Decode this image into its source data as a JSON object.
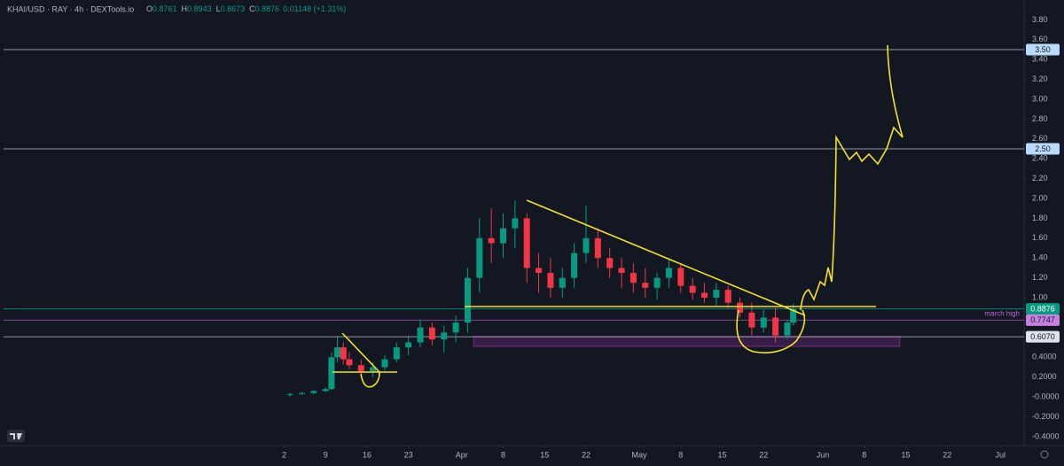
{
  "header": {
    "symbol": "KHAI/USD · RAY · 4h · DEXTools.io",
    "ohlc": [
      {
        "label": "O",
        "value": 0.8761
      },
      {
        "label": "H",
        "value": 0.8943
      },
      {
        "label": "L",
        "value": 0.8673
      },
      {
        "label": "C",
        "value": 0.8876
      }
    ],
    "change": "0.01148 (+1.31%)"
  },
  "chart_data": {
    "type": "candlestick",
    "up_color": "#089981",
    "down_color": "#f23645",
    "x": [
      "Mar 3",
      "Mar 5",
      "Mar 7",
      "Mar 9",
      "Mar 10",
      "Mar 11",
      "Mar 12",
      "Mar 13",
      "Mar 15",
      "Mar 17",
      "Mar 19",
      "Mar 21",
      "Mar 23",
      "Mar 25",
      "Mar 27",
      "Mar 29",
      "Mar 31",
      "Apr 2",
      "Apr 4",
      "Apr 6",
      "Apr 8",
      "Apr 10",
      "Apr 12",
      "Apr 14",
      "Apr 16",
      "Apr 18",
      "Apr 20",
      "Apr 22",
      "Apr 24",
      "Apr 26",
      "Apr 28",
      "Apr 30",
      "May 2",
      "May 4",
      "May 6",
      "May 8",
      "May 10",
      "May 12",
      "May 14",
      "May 16",
      "May 18",
      "May 20",
      "May 22",
      "May 24",
      "May 26",
      "May 27"
    ],
    "open": [
      0.02,
      0.03,
      0.04,
      0.06,
      0.08,
      0.4,
      0.5,
      0.38,
      0.32,
      0.26,
      0.3,
      0.38,
      0.5,
      0.55,
      0.7,
      0.58,
      0.65,
      0.75,
      1.2,
      1.6,
      1.55,
      1.7,
      1.8,
      1.3,
      1.25,
      1.1,
      1.2,
      1.45,
      1.6,
      1.4,
      1.3,
      1.25,
      1.15,
      1.1,
      1.2,
      1.3,
      1.12,
      1.05,
      1.0,
      1.08,
      0.95,
      0.85,
      0.7,
      0.8,
      0.62,
      0.75
    ],
    "high": [
      0.04,
      0.05,
      0.07,
      0.1,
      0.45,
      0.62,
      0.55,
      0.45,
      0.38,
      0.35,
      0.42,
      0.55,
      0.62,
      0.78,
      0.75,
      0.72,
      0.82,
      1.3,
      1.8,
      1.9,
      1.85,
      1.98,
      1.85,
      1.45,
      1.4,
      1.3,
      1.55,
      1.93,
      1.7,
      1.5,
      1.4,
      1.35,
      1.3,
      1.25,
      1.4,
      1.35,
      1.2,
      1.15,
      1.15,
      1.12,
      1.0,
      0.95,
      0.88,
      0.9,
      0.78,
      0.94
    ],
    "low": [
      0.0,
      0.02,
      0.03,
      0.05,
      0.07,
      0.35,
      0.33,
      0.28,
      0.2,
      0.2,
      0.27,
      0.35,
      0.42,
      0.5,
      0.52,
      0.45,
      0.55,
      0.65,
      1.05,
      1.35,
      1.4,
      1.5,
      1.15,
      1.05,
      1.0,
      1.0,
      1.1,
      1.35,
      1.3,
      1.2,
      1.1,
      1.05,
      1.0,
      0.98,
      1.1,
      1.05,
      0.98,
      0.95,
      0.92,
      0.9,
      0.8,
      0.62,
      0.65,
      0.55,
      0.58,
      0.72
    ],
    "close": [
      0.03,
      0.04,
      0.06,
      0.08,
      0.4,
      0.5,
      0.38,
      0.32,
      0.26,
      0.3,
      0.38,
      0.5,
      0.55,
      0.7,
      0.58,
      0.65,
      0.75,
      1.2,
      1.6,
      1.55,
      1.7,
      1.8,
      1.3,
      1.25,
      1.1,
      1.2,
      1.45,
      1.6,
      1.4,
      1.3,
      1.25,
      1.15,
      1.1,
      1.2,
      1.3,
      1.12,
      1.05,
      1.0,
      1.08,
      0.95,
      0.85,
      0.7,
      0.8,
      0.62,
      0.75,
      0.8876
    ],
    "xlim": [
      "Jan 13",
      "Jul 5"
    ],
    "xticks": [
      {
        "value": "Mar 2",
        "label": "2"
      },
      {
        "value": "Mar 9",
        "label": "9"
      },
      {
        "value": "Mar 16",
        "label": "16"
      },
      {
        "value": "Mar 23",
        "label": "23"
      },
      {
        "value": "Apr 1",
        "label": "Apr"
      },
      {
        "value": "Apr 8",
        "label": "8"
      },
      {
        "value": "Apr 15",
        "label": "15"
      },
      {
        "value": "Apr 22",
        "label": "22"
      },
      {
        "value": "May 1",
        "label": "May"
      },
      {
        "value": "May 8",
        "label": "8"
      },
      {
        "value": "May 15",
        "label": "15"
      },
      {
        "value": "May 22",
        "label": "22"
      },
      {
        "value": "Jun 1",
        "label": "Jun"
      },
      {
        "value": "Jun 8",
        "label": "8"
      },
      {
        "value": "Jun 15",
        "label": "15"
      },
      {
        "value": "Jun 22",
        "label": "22"
      },
      {
        "value": "Jul 1",
        "label": "Jul"
      }
    ],
    "ylim": [
      -0.49,
      4.0
    ],
    "yticks": [
      {
        "value": 3.8,
        "label": "3.80"
      },
      {
        "value": 3.6,
        "label": "3.60"
      },
      {
        "value": 3.4,
        "label": "3.40"
      },
      {
        "value": 3.2,
        "label": "3.20"
      },
      {
        "value": 3.0,
        "label": "3.00"
      },
      {
        "value": 2.8,
        "label": "2.80"
      },
      {
        "value": 2.6,
        "label": "2.60"
      },
      {
        "value": 2.4,
        "label": "2.40"
      },
      {
        "value": 2.2,
        "label": "2.20"
      },
      {
        "value": 2.0,
        "label": "2.00"
      },
      {
        "value": 1.8,
        "label": "1.80"
      },
      {
        "value": 1.6,
        "label": "1.60"
      },
      {
        "value": 1.4,
        "label": "1.40"
      },
      {
        "value": 1.2,
        "label": "1.20"
      },
      {
        "value": 1.0,
        "label": "1.00"
      },
      {
        "value": 0.4,
        "label": "0.4000"
      },
      {
        "value": 0.2,
        "label": "0.2000"
      },
      {
        "value": 0,
        "label": "-0.0000"
      },
      {
        "value": -0.2,
        "label": "-0.2000"
      },
      {
        "value": -0.4,
        "label": "-0.4000"
      }
    ],
    "levels": [
      {
        "value": 3.5,
        "label": "3.50",
        "color": "#b2b5be",
        "box": "#bbd9fb"
      },
      {
        "value": 2.5,
        "label": "2.50",
        "color": "#b2b5be",
        "box": "#bbd9fb"
      },
      {
        "value": 0.8876,
        "label": "0.8876",
        "color": "#089981",
        "box": "#089981"
      },
      {
        "value": 0.7747,
        "label": "0.7747",
        "color": "#9c4fb0",
        "box": "#c77fe0"
      },
      {
        "value": 0.607,
        "label": "0.6070",
        "color": "#b2b5be",
        "box": "#e0e3eb"
      }
    ],
    "annotation": {
      "text": "march high",
      "value": 0.7747,
      "color": "#b36bd1"
    },
    "zone": {
      "x": [
        "Apr 3",
        "Jun 14"
      ],
      "y": [
        0.51,
        0.61
      ],
      "color": "#7b2a8c"
    }
  }
}
